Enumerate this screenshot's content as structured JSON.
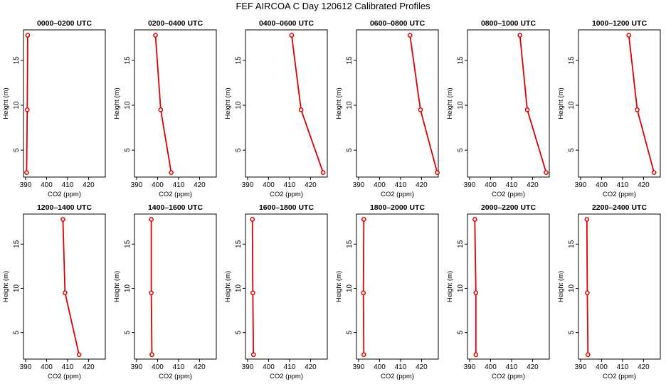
{
  "title": "FEF AIRCOA C  Day 120612  Calibrated Profiles",
  "axis": {
    "xlabel": "CO2 (ppm)",
    "ylabel": "Height (m)",
    "xticks": [
      "390",
      "400",
      "410",
      "420"
    ],
    "yticks": [
      "5",
      "10",
      "15"
    ]
  },
  "chart_data": [
    {
      "type": "line",
      "title": "0000–0200 UTC",
      "x": [
        390.5,
        390.8,
        391.0
      ],
      "y": [
        2.5,
        9.5,
        17.8
      ],
      "xlim": [
        389,
        428
      ],
      "ylim": [
        2,
        18.4
      ]
    },
    {
      "type": "line",
      "title": "0200–0400 UTC",
      "x": [
        406.5,
        401.5,
        399.0
      ],
      "y": [
        2.5,
        9.5,
        17.8
      ],
      "xlim": [
        389,
        428
      ],
      "ylim": [
        2,
        18.4
      ]
    },
    {
      "type": "line",
      "title": "0400–0600 UTC",
      "x": [
        426.0,
        415.5,
        411.0
      ],
      "y": [
        2.5,
        9.5,
        17.8
      ],
      "xlim": [
        389,
        428
      ],
      "ylim": [
        2,
        18.4
      ]
    },
    {
      "type": "line",
      "title": "0600–0800 UTC",
      "x": [
        427.5,
        419.5,
        414.5
      ],
      "y": [
        2.5,
        9.5,
        17.8
      ],
      "xlim": [
        389,
        428
      ],
      "ylim": [
        2,
        18.4
      ]
    },
    {
      "type": "line",
      "title": "0800–1000 UTC",
      "x": [
        426.5,
        417.5,
        414.0
      ],
      "y": [
        2.5,
        9.5,
        17.8
      ],
      "xlim": [
        389,
        428
      ],
      "ylim": [
        2,
        18.4
      ]
    },
    {
      "type": "line",
      "title": "1000–1200 UTC",
      "x": [
        425.0,
        417.0,
        413.0
      ],
      "y": [
        2.5,
        9.5,
        17.8
      ],
      "xlim": [
        389,
        428
      ],
      "ylim": [
        2,
        18.4
      ]
    },
    {
      "type": "line",
      "title": "1200–1400 UTC",
      "x": [
        415.5,
        408.8,
        407.8
      ],
      "y": [
        2.5,
        9.5,
        17.8
      ],
      "xlim": [
        389,
        428
      ],
      "ylim": [
        2,
        18.4
      ]
    },
    {
      "type": "line",
      "title": "1400–1600 UTC",
      "x": [
        397.3,
        397.0,
        397.0
      ],
      "y": [
        2.5,
        9.5,
        17.8
      ],
      "xlim": [
        389,
        428
      ],
      "ylim": [
        2,
        18.4
      ]
    },
    {
      "type": "line",
      "title": "1600–1800 UTC",
      "x": [
        392.8,
        392.5,
        392.3
      ],
      "y": [
        2.5,
        9.5,
        17.8
      ],
      "xlim": [
        389,
        428
      ],
      "ylim": [
        2,
        18.4
      ]
    },
    {
      "type": "line",
      "title": "1800–2000 UTC",
      "x": [
        392.5,
        392.3,
        392.5
      ],
      "y": [
        2.5,
        9.5,
        17.8
      ],
      "xlim": [
        389,
        428
      ],
      "ylim": [
        2,
        18.4
      ]
    },
    {
      "type": "line",
      "title": "2000–2200 UTC",
      "x": [
        393.0,
        393.0,
        392.5
      ],
      "y": [
        2.5,
        9.5,
        17.8
      ],
      "xlim": [
        389,
        428
      ],
      "ylim": [
        2,
        18.4
      ]
    },
    {
      "type": "line",
      "title": "2200–2400 UTC",
      "x": [
        393.5,
        393.2,
        393.0
      ],
      "y": [
        2.5,
        9.5,
        17.8
      ],
      "xlim": [
        389,
        428
      ],
      "ylim": [
        2,
        18.4
      ]
    }
  ],
  "colors": {
    "series": "#dd0000",
    "axis": "#000000"
  }
}
